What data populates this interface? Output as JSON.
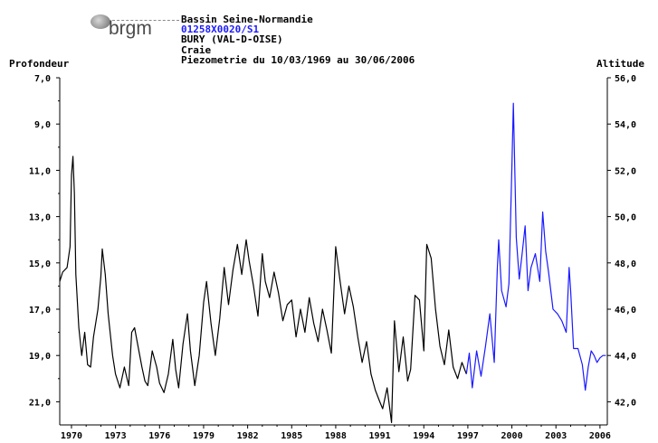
{
  "logo": {
    "text": "brgm"
  },
  "header": {
    "basin": "Bassin Seine-Normandie",
    "station_code": "01258X0020/S1",
    "commune": "BURY (VAL-D-OISE)",
    "aquifer": "Craie",
    "period": "Piezometrie du 10/03/1969 au 30/06/2006"
  },
  "colors": {
    "historic_series": "#000000",
    "recent_series": "#1a1aff",
    "axis": "#000000"
  },
  "chart_data": {
    "type": "line",
    "title": "Piezometrie du 10/03/1969 au 30/06/2006",
    "ylabel_left": "Profondeur",
    "ylabel_right": "Altitude",
    "xlim": [
      1969.2,
      2006.5
    ],
    "ylim_left": [
      7.0,
      22.0
    ],
    "left_axis_inverted": true,
    "ylim_right": [
      42.0,
      57.0
    ],
    "x_ticks": [
      "1970",
      "1973",
      "1976",
      "1979",
      "1982",
      "1985",
      "1988",
      "1991",
      "1994",
      "1997",
      "2000",
      "2003",
      "2006"
    ],
    "y_ticks_left": [
      "7,0",
      "9,0",
      "11,0",
      "13,0",
      "15,0",
      "17,0",
      "19,0",
      "21,0"
    ],
    "y_ticks_right": [
      "42,0",
      "44,0",
      "46,0",
      "48,0",
      "50,0",
      "52,0",
      "54,0",
      "56,0"
    ],
    "grid": false,
    "series": [
      {
        "color": "#000000",
        "x": [
          1969.2,
          1969.4,
          1969.7,
          1969.9,
          1970.0,
          1970.1,
          1970.2,
          1970.3,
          1970.5,
          1970.7,
          1970.9,
          1971.1,
          1971.3,
          1971.5,
          1971.8,
          1972.0,
          1972.1,
          1972.3,
          1972.5,
          1972.8,
          1973.0,
          1973.3,
          1973.6,
          1973.9,
          1974.1,
          1974.3,
          1974.5,
          1974.8,
          1975.0,
          1975.2,
          1975.5,
          1975.8,
          1976.0,
          1976.3,
          1976.6,
          1976.9,
          1977.1,
          1977.3,
          1977.6,
          1977.9,
          1978.1,
          1978.4,
          1978.7,
          1979.0,
          1979.2,
          1979.5,
          1979.8,
          1980.1,
          1980.4,
          1980.7,
          1981.0,
          1981.3,
          1981.6,
          1981.9,
          1982.1,
          1982.4,
          1982.7,
          1983.0,
          1983.2,
          1983.5,
          1983.8,
          1984.1,
          1984.4,
          1984.7,
          1985.0,
          1985.3,
          1985.6,
          1985.9,
          1986.2,
          1986.5,
          1986.8,
          1987.1,
          1987.4,
          1987.7,
          1988.0,
          1988.3,
          1988.6,
          1988.9,
          1989.2,
          1989.5,
          1989.8,
          1990.1,
          1990.4,
          1990.7,
          1991.0,
          1991.2,
          1991.5,
          1991.8,
          1992.0,
          1992.3,
          1992.6,
          1992.9,
          1993.1,
          1993.4,
          1993.7,
          1994.0,
          1994.2,
          1994.5,
          1994.8,
          1995.1,
          1995.4,
          1995.7,
          1996.0,
          1996.3,
          1996.6,
          1996.9
        ],
        "y": [
          15.8,
          15.4,
          15.2,
          14.3,
          11.2,
          10.4,
          12.0,
          15.5,
          17.8,
          19.0,
          18.0,
          19.4,
          19.5,
          18.2,
          17.0,
          15.6,
          14.4,
          15.5,
          17.2,
          19.0,
          19.8,
          20.4,
          19.5,
          20.3,
          18.0,
          17.8,
          18.5,
          19.5,
          20.1,
          20.3,
          18.8,
          19.5,
          20.2,
          20.6,
          19.8,
          18.3,
          19.6,
          20.4,
          18.5,
          17.2,
          18.8,
          20.3,
          19.0,
          16.7,
          15.8,
          17.6,
          19.0,
          17.4,
          15.2,
          16.8,
          15.3,
          14.2,
          15.5,
          14.0,
          14.9,
          16.0,
          17.3,
          14.6,
          15.8,
          16.5,
          15.4,
          16.3,
          17.5,
          16.8,
          16.6,
          18.2,
          17.0,
          18.0,
          16.5,
          17.6,
          18.4,
          17.0,
          17.9,
          18.9,
          14.3,
          15.8,
          17.2,
          16.0,
          16.9,
          18.2,
          19.3,
          18.4,
          19.8,
          20.5,
          21.0,
          21.3,
          20.4,
          21.9,
          17.5,
          19.7,
          18.2,
          20.1,
          19.6,
          16.4,
          16.6,
          18.8,
          14.2,
          14.8,
          17.0,
          18.6,
          19.4,
          17.9,
          19.5,
          20.0,
          19.3,
          19.8
        ],
        "name": ""
      },
      {
        "color": "#1a1aff",
        "x": [
          1996.9,
          1997.1,
          1997.3,
          1997.6,
          1997.9,
          1998.2,
          1998.5,
          1998.8,
          1999.0,
          1999.1,
          1999.3,
          1999.6,
          1999.8,
          2000.0,
          2000.1,
          2000.3,
          2000.5,
          2000.7,
          2000.9,
          2001.1,
          2001.3,
          2001.6,
          2001.9,
          2002.1,
          2002.3,
          2002.5,
          2002.8,
          2003.1,
          2003.4,
          2003.7,
          2003.9,
          2004.0,
          2004.2,
          2004.5,
          2004.8,
          2005.0,
          2005.2,
          2005.4,
          2005.6,
          2005.8,
          2006.0,
          2006.2,
          2006.4
        ],
        "y": [
          19.8,
          18.9,
          20.4,
          18.8,
          19.9,
          18.6,
          17.2,
          19.3,
          15.3,
          14.0,
          16.2,
          16.9,
          15.9,
          10.8,
          8.1,
          13.9,
          15.7,
          14.6,
          13.4,
          16.2,
          15.2,
          14.6,
          15.8,
          12.8,
          14.5,
          15.4,
          17.0,
          17.2,
          17.5,
          18.0,
          15.2,
          16.2,
          18.7,
          18.7,
          19.4,
          20.5,
          19.5,
          18.8,
          19.0,
          19.3,
          19.1,
          19.0,
          19.0
        ],
        "name": ""
      }
    ]
  }
}
